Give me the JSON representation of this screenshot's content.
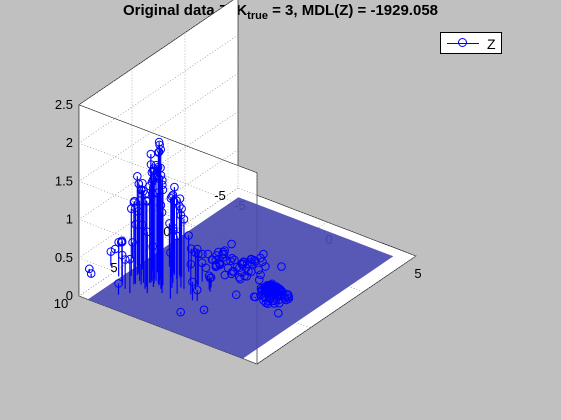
{
  "title": {
    "prefix": "Original data Z, K",
    "subscript": "true",
    "suffix": " = 3, MDL(Z) = -1929.058"
  },
  "legend": {
    "label": "Z"
  },
  "colors": {
    "background": "#c0c0c0",
    "plot": "#ffffff",
    "series": "#0000ff",
    "surface": "#4a4ab0",
    "grid": "#808080"
  },
  "chart_data": {
    "type": "scatter",
    "subtype": "3d stem",
    "title": "Original data Z, Ktrue = 3, MDL(Z) = -1929.058",
    "xlim": [
      -5,
      5
    ],
    "ylim": [
      -5,
      10
    ],
    "zlim": [
      0,
      2.5
    ],
    "x_ticks": [
      "-5",
      "0",
      "5"
    ],
    "y_ticks": [
      "-5",
      "0",
      "5",
      "10"
    ],
    "z_ticks": [
      "0",
      "0.5",
      "1",
      "1.5",
      "2",
      "2.5"
    ],
    "grid": true,
    "legend_position": "top-right",
    "series": [
      {
        "name": "Z",
        "marker": "circle",
        "clusters": [
          {
            "center": [
              -3,
              6
            ],
            "spread": 1.2,
            "peak_height": 1.75,
            "count": 90
          },
          {
            "center": [
              2,
              3.5
            ],
            "spread": 0.4,
            "peak_height": 0.15,
            "count": 70
          },
          {
            "center": [
              -1,
              2
            ],
            "spread": 0.8,
            "peak_height": 0.0,
            "count": 60
          }
        ]
      }
    ]
  }
}
